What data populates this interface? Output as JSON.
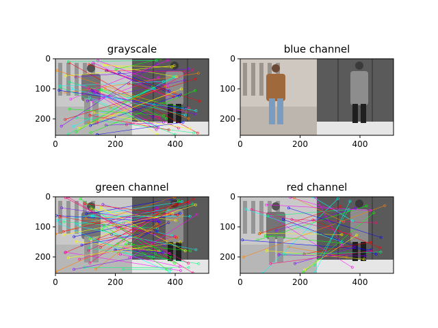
{
  "figure": {
    "panels": [
      {
        "title": "grayscale",
        "mode": "gray",
        "x_ticks": [
          "0",
          "200",
          "400"
        ],
        "y_ticks": [
          "0",
          "100",
          "200"
        ]
      },
      {
        "title": "blue channel",
        "mode": "color",
        "x_ticks": [
          "0",
          "200",
          "400"
        ],
        "y_ticks": [
          "0",
          "100",
          "200"
        ]
      },
      {
        "title": "green channel",
        "mode": "gray",
        "x_ticks": [
          "0",
          "200",
          "400"
        ],
        "y_ticks": [
          "0",
          "100",
          "200"
        ]
      },
      {
        "title": "red channel",
        "mode": "gray",
        "x_ticks": [
          "0",
          "200",
          "400"
        ],
        "y_ticks": [
          "0",
          "100",
          "200"
        ]
      }
    ],
    "colors": {
      "match_line_palette": [
        "#ff00ff",
        "#00ffff",
        "#00ff00",
        "#ffff00",
        "#0000ff",
        "#ff0000",
        "#ff8000",
        "#8000ff",
        "#00ff80",
        "#ff0080"
      ],
      "left_image_bg": "#cfc8c0",
      "right_image_bg": "#5a5a5a",
      "coat": "#a0693b",
      "jeans": "#7a9cc0"
    }
  }
}
